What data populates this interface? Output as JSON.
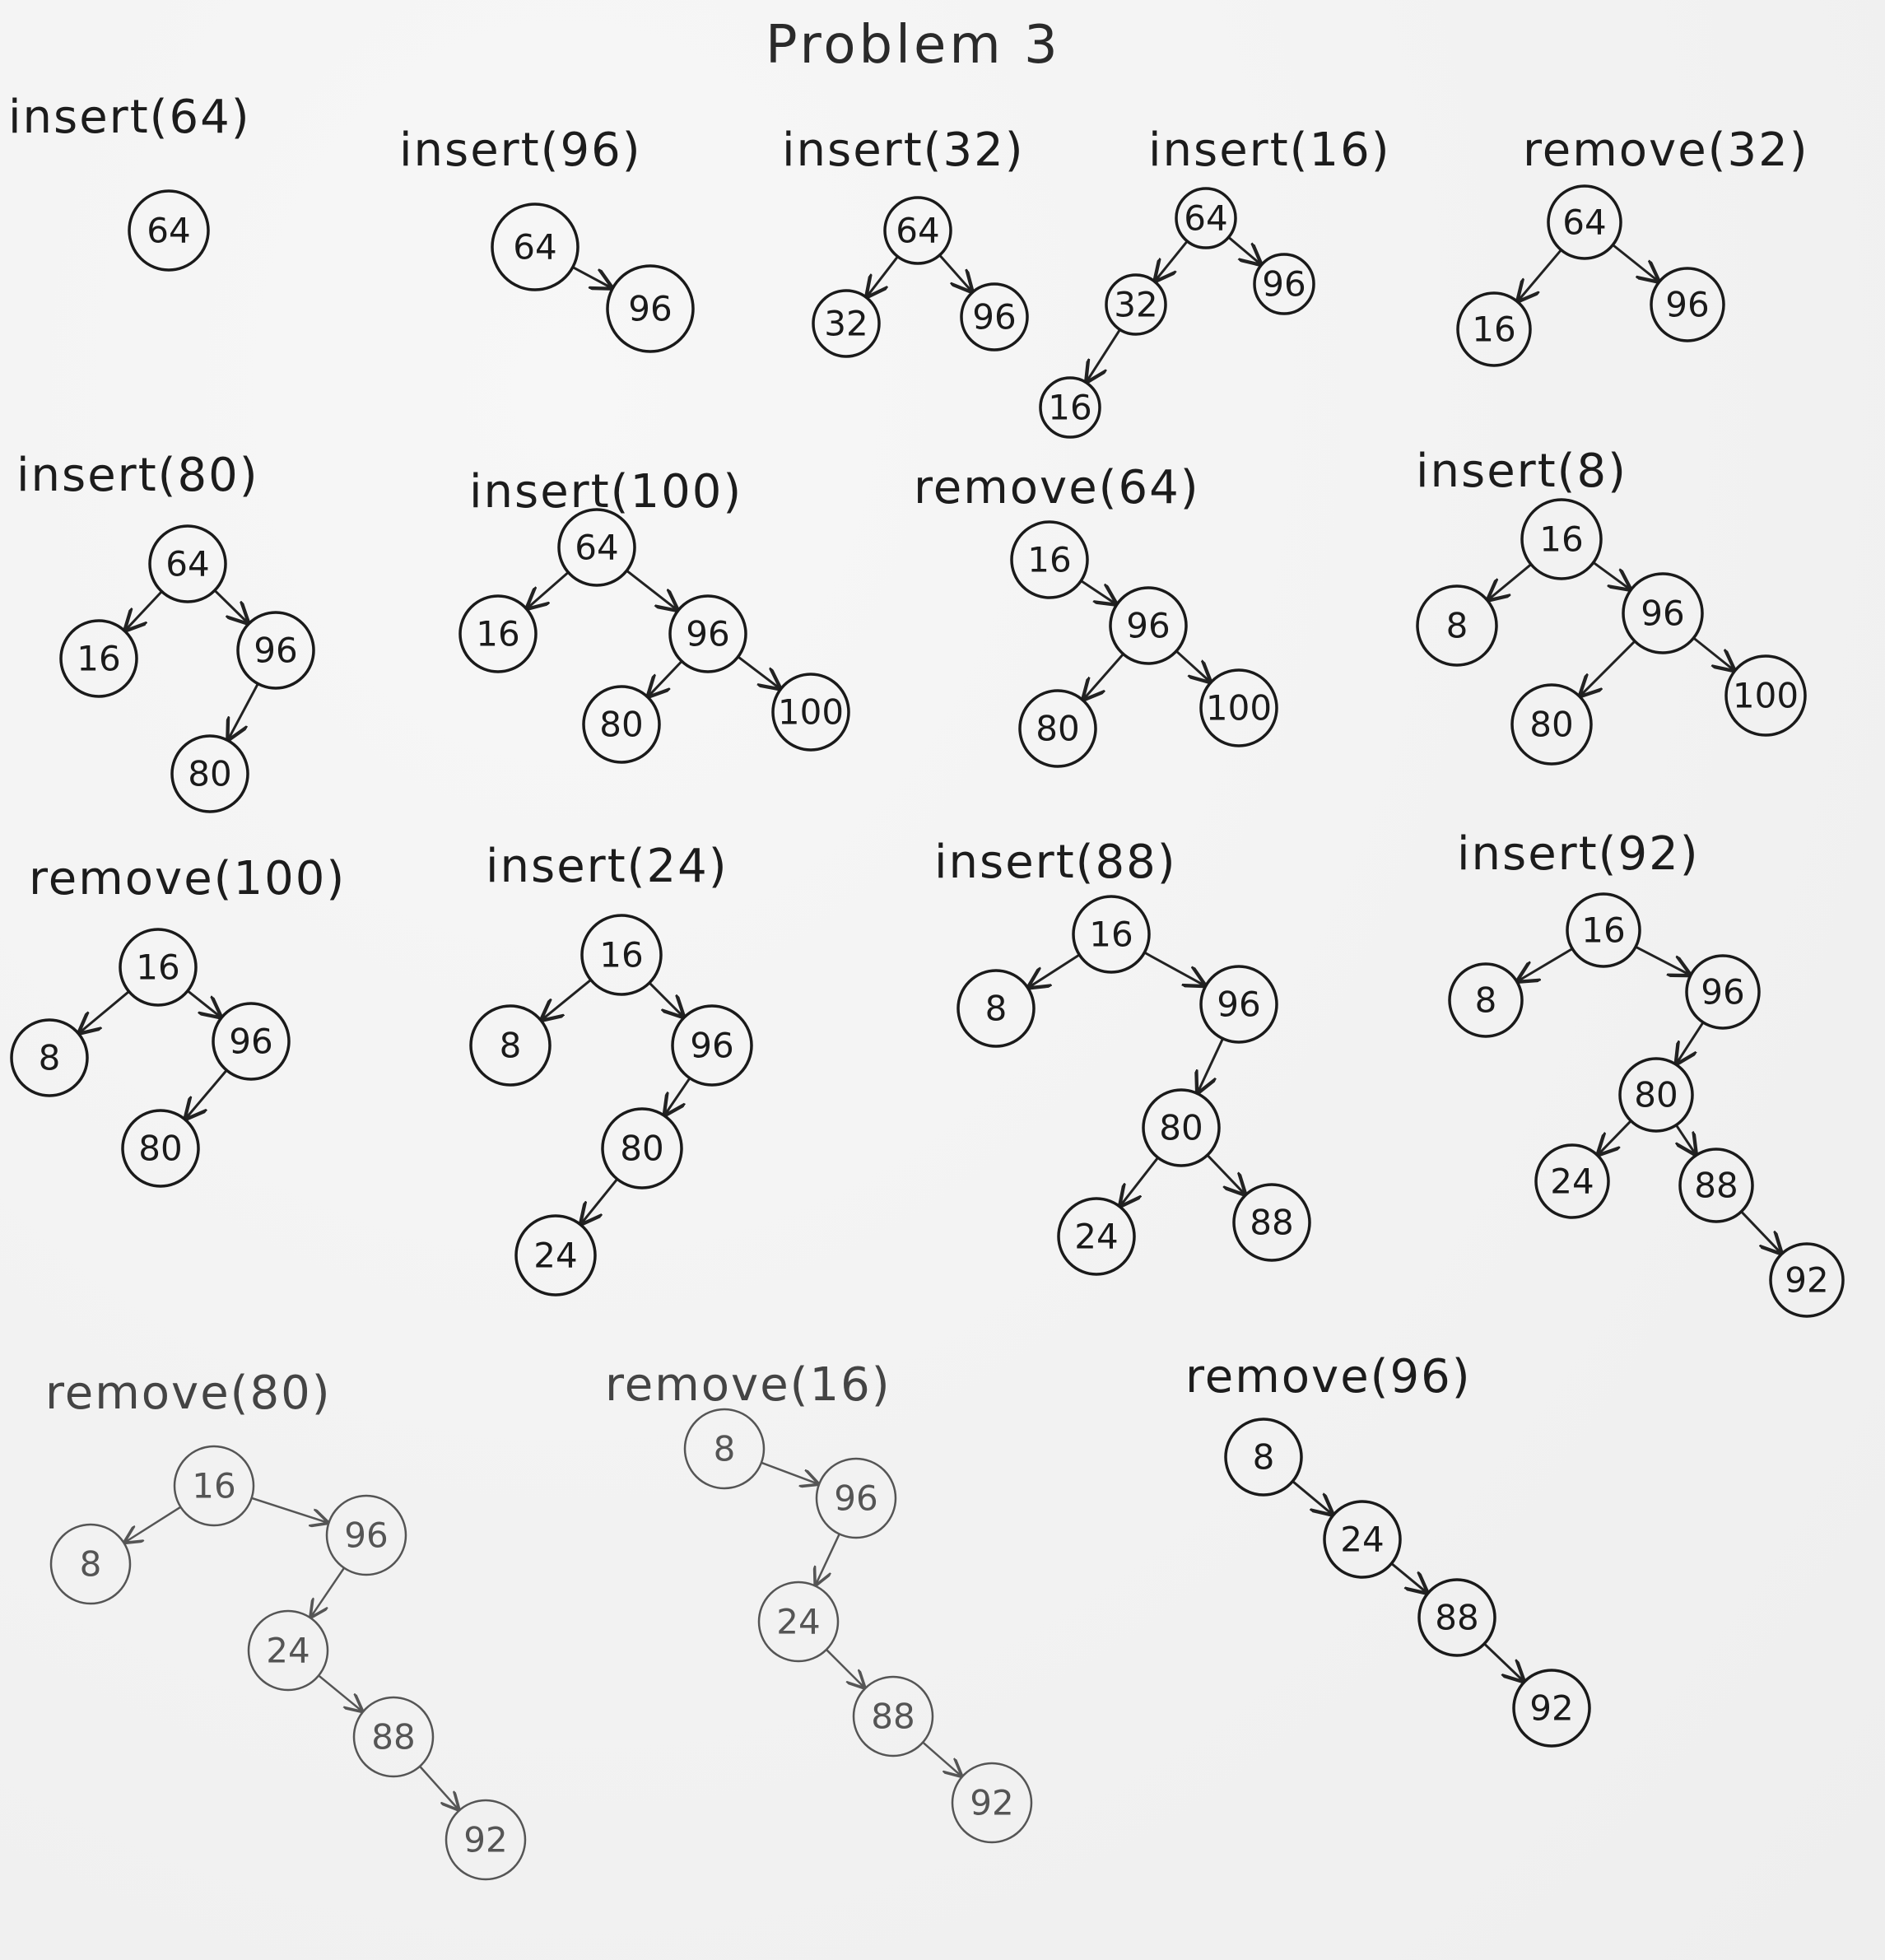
{
  "title": "Problem 3",
  "panels": [
    {
      "label": "insert(64)",
      "nodes": [
        {
          "id": "a",
          "value": "64"
        }
      ],
      "edges": []
    },
    {
      "label": "insert(96)",
      "nodes": [
        {
          "id": "a",
          "value": "64"
        },
        {
          "id": "b",
          "value": "96"
        }
      ],
      "edges": [
        [
          "a",
          "b"
        ]
      ]
    },
    {
      "label": "insert(32)",
      "nodes": [
        {
          "id": "a",
          "value": "64"
        },
        {
          "id": "b",
          "value": "32"
        },
        {
          "id": "c",
          "value": "96"
        }
      ],
      "edges": [
        [
          "a",
          "b"
        ],
        [
          "a",
          "c"
        ]
      ]
    },
    {
      "label": "insert(16)",
      "nodes": [
        {
          "id": "a",
          "value": "64"
        },
        {
          "id": "b",
          "value": "32"
        },
        {
          "id": "c",
          "value": "96"
        },
        {
          "id": "d",
          "value": "16"
        }
      ],
      "edges": [
        [
          "a",
          "b"
        ],
        [
          "a",
          "c"
        ],
        [
          "b",
          "d"
        ]
      ]
    },
    {
      "label": "remove(32)",
      "nodes": [
        {
          "id": "a",
          "value": "64"
        },
        {
          "id": "b",
          "value": "16"
        },
        {
          "id": "c",
          "value": "96"
        }
      ],
      "edges": [
        [
          "a",
          "b"
        ],
        [
          "a",
          "c"
        ]
      ]
    },
    {
      "label": "insert(80)",
      "nodes": [
        {
          "id": "a",
          "value": "64"
        },
        {
          "id": "b",
          "value": "16"
        },
        {
          "id": "c",
          "value": "96"
        },
        {
          "id": "d",
          "value": "80"
        }
      ],
      "edges": [
        [
          "a",
          "b"
        ],
        [
          "a",
          "c"
        ],
        [
          "c",
          "d"
        ]
      ]
    },
    {
      "label": "insert(100)",
      "nodes": [
        {
          "id": "a",
          "value": "64"
        },
        {
          "id": "b",
          "value": "16"
        },
        {
          "id": "c",
          "value": "96"
        },
        {
          "id": "d",
          "value": "80"
        },
        {
          "id": "e",
          "value": "100"
        }
      ],
      "edges": [
        [
          "a",
          "b"
        ],
        [
          "a",
          "c"
        ],
        [
          "c",
          "d"
        ],
        [
          "c",
          "e"
        ]
      ]
    },
    {
      "label": "remove(64)",
      "nodes": [
        {
          "id": "a",
          "value": "16"
        },
        {
          "id": "b",
          "value": "96"
        },
        {
          "id": "c",
          "value": "80"
        },
        {
          "id": "d",
          "value": "100"
        }
      ],
      "edges": [
        [
          "a",
          "b"
        ],
        [
          "b",
          "c"
        ],
        [
          "b",
          "d"
        ]
      ]
    },
    {
      "label": "insert(8)",
      "nodes": [
        {
          "id": "a",
          "value": "16"
        },
        {
          "id": "b",
          "value": "8"
        },
        {
          "id": "c",
          "value": "96"
        },
        {
          "id": "d",
          "value": "80"
        },
        {
          "id": "e",
          "value": "100"
        }
      ],
      "edges": [
        [
          "a",
          "b"
        ],
        [
          "a",
          "c"
        ],
        [
          "c",
          "d"
        ],
        [
          "c",
          "e"
        ]
      ]
    },
    {
      "label": "remove(100)",
      "nodes": [
        {
          "id": "a",
          "value": "16"
        },
        {
          "id": "b",
          "value": "8"
        },
        {
          "id": "c",
          "value": "96"
        },
        {
          "id": "d",
          "value": "80"
        }
      ],
      "edges": [
        [
          "a",
          "b"
        ],
        [
          "a",
          "c"
        ],
        [
          "c",
          "d"
        ]
      ]
    },
    {
      "label": "insert(24)",
      "nodes": [
        {
          "id": "a",
          "value": "16"
        },
        {
          "id": "b",
          "value": "8"
        },
        {
          "id": "c",
          "value": "96"
        },
        {
          "id": "d",
          "value": "80"
        },
        {
          "id": "e",
          "value": "24"
        }
      ],
      "edges": [
        [
          "a",
          "b"
        ],
        [
          "a",
          "c"
        ],
        [
          "c",
          "d"
        ],
        [
          "d",
          "e"
        ]
      ]
    },
    {
      "label": "insert(88)",
      "nodes": [
        {
          "id": "a",
          "value": "16"
        },
        {
          "id": "b",
          "value": "8"
        },
        {
          "id": "c",
          "value": "96"
        },
        {
          "id": "d",
          "value": "80"
        },
        {
          "id": "e",
          "value": "24"
        },
        {
          "id": "f",
          "value": "88"
        }
      ],
      "edges": [
        [
          "a",
          "b"
        ],
        [
          "a",
          "c"
        ],
        [
          "c",
          "d"
        ],
        [
          "d",
          "e"
        ],
        [
          "d",
          "f"
        ]
      ]
    },
    {
      "label": "insert(92)",
      "nodes": [
        {
          "id": "a",
          "value": "16"
        },
        {
          "id": "b",
          "value": "8"
        },
        {
          "id": "c",
          "value": "96"
        },
        {
          "id": "d",
          "value": "80"
        },
        {
          "id": "e",
          "value": "24"
        },
        {
          "id": "f",
          "value": "88"
        },
        {
          "id": "g",
          "value": "92"
        }
      ],
      "edges": [
        [
          "a",
          "b"
        ],
        [
          "a",
          "c"
        ],
        [
          "c",
          "d"
        ],
        [
          "d",
          "e"
        ],
        [
          "d",
          "f"
        ],
        [
          "f",
          "g"
        ]
      ]
    },
    {
      "label": "remove(80)",
      "nodes": [
        {
          "id": "a",
          "value": "16"
        },
        {
          "id": "b",
          "value": "8"
        },
        {
          "id": "c",
          "value": "96"
        },
        {
          "id": "d",
          "value": "24"
        },
        {
          "id": "e",
          "value": "88"
        },
        {
          "id": "f",
          "value": "92"
        }
      ],
      "edges": [
        [
          "a",
          "b"
        ],
        [
          "a",
          "c"
        ],
        [
          "c",
          "d"
        ],
        [
          "d",
          "e"
        ],
        [
          "e",
          "f"
        ]
      ]
    },
    {
      "label": "remove(16)",
      "nodes": [
        {
          "id": "a",
          "value": "8"
        },
        {
          "id": "b",
          "value": "96"
        },
        {
          "id": "c",
          "value": "24"
        },
        {
          "id": "d",
          "value": "88"
        },
        {
          "id": "e",
          "value": "92"
        }
      ],
      "edges": [
        [
          "a",
          "b"
        ],
        [
          "b",
          "c"
        ],
        [
          "c",
          "d"
        ],
        [
          "d",
          "e"
        ]
      ]
    },
    {
      "label": "remove(96)",
      "nodes": [
        {
          "id": "a",
          "value": "8"
        },
        {
          "id": "b",
          "value": "24"
        },
        {
          "id": "c",
          "value": "88"
        },
        {
          "id": "d",
          "value": "92"
        }
      ],
      "edges": [
        [
          "a",
          "b"
        ],
        [
          "b",
          "c"
        ],
        [
          "c",
          "d"
        ]
      ]
    }
  ]
}
